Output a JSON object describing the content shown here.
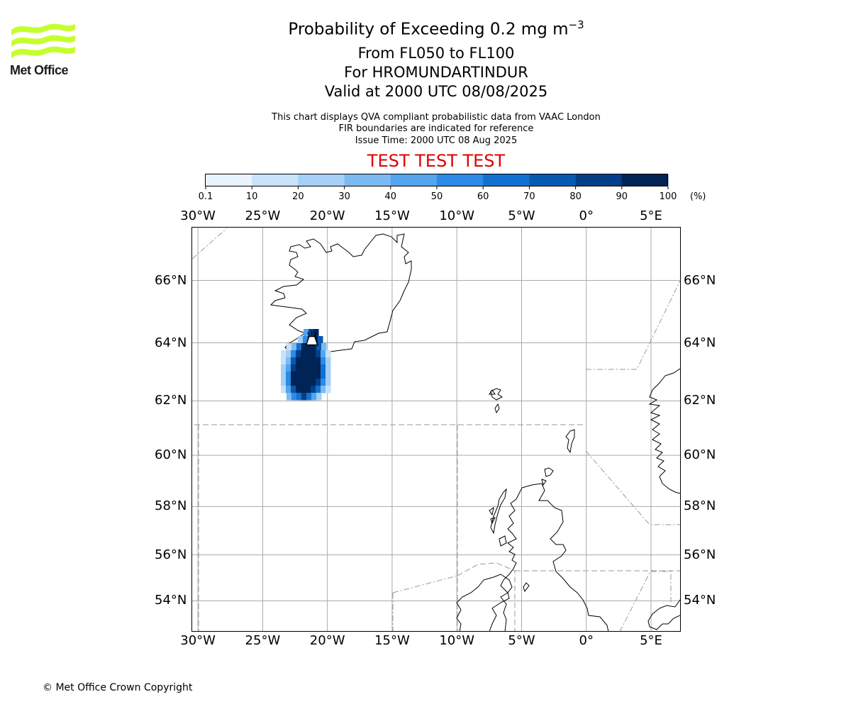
{
  "logo": {
    "text": "Met Office",
    "color": "#c4ff2d"
  },
  "title": {
    "line1_main": "Probability of Exceeding 0.2 mg m",
    "line1_sup": "−3",
    "line2": "From FL050 to FL100",
    "line3": "For HROMUNDARTINDUR",
    "line4": "Valid at 2000 UTC 08/08/2025"
  },
  "subtitle": {
    "line1": "This chart displays QVA compliant probabilistic data from VAAC London",
    "line2": "FIR boundaries are indicated for reference",
    "line3": "Issue Time: 2000 UTC 08 Aug 2025"
  },
  "test_banner": {
    "text": "TEST TEST TEST",
    "color": "#e00000"
  },
  "colorbar": {
    "labels": [
      "0.1",
      "10",
      "20",
      "30",
      "40",
      "50",
      "60",
      "70",
      "80",
      "90",
      "100"
    ],
    "unit": "(%)",
    "colors": [
      "#e8f3fd",
      "#c7e2f9",
      "#a4cff6",
      "#7cbaf2",
      "#53a4ee",
      "#2b8be6",
      "#1171d1",
      "#075ab1",
      "#033f88",
      "#012457"
    ]
  },
  "map": {
    "lon_labels": [
      "30°W",
      "25°W",
      "20°W",
      "15°W",
      "10°W",
      "5°W",
      "0°",
      "5°E"
    ],
    "lon_values": [
      -30,
      -25,
      -20,
      -15,
      -10,
      -5,
      0,
      5
    ],
    "lat_labels": [
      "66°N",
      "64°N",
      "62°N",
      "60°N",
      "58°N",
      "56°N",
      "54°N"
    ],
    "lat_values": [
      66,
      64,
      62,
      60,
      58,
      56,
      54
    ],
    "extent": {
      "lon_min": -30.5,
      "lon_max": 7.3,
      "lat_min": 52.6,
      "lat_max": 67.6
    },
    "gridline_color": "#aaaaaa",
    "fir_color": "#9a9a9a",
    "volcano": {
      "name": "HROMUNDARTINDUR",
      "lon": -21.2,
      "lat": 64.07
    }
  },
  "copyright": "© Met Office Crown Copyright"
}
